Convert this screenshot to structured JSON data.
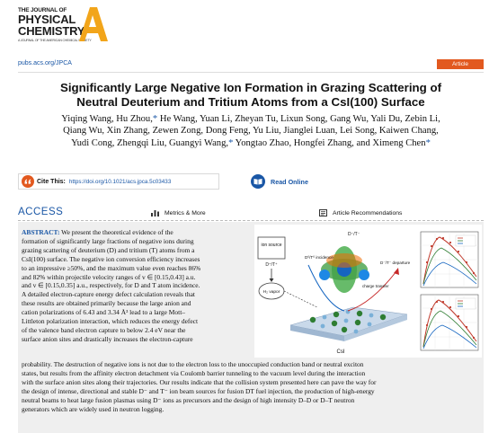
{
  "journal": {
    "line1": "THE JOURNAL OF",
    "line2": "PHYSICAL",
    "line3": "CHEMISTRY",
    "line4": "A JOURNAL OF THE AMERICAN CHEMICAL SOCIETY",
    "letter": "A"
  },
  "pubs_link": "pubs.acs.org/JPCA",
  "badge": "Article",
  "title_line1": "Significantly Large Negative Ion Formation in Grazing Scattering of",
  "title_line2": "Neutral Deuterium and Tritium Atoms from a CsI(100) Surface",
  "authors": {
    "line1": "Yiqing Wang, Hu Zhou,",
    "line1b": " He Wang, Yuan Li, Zheyan Tu, Lixun Song, Gang Wu, Yali Du, Zebin Li,",
    "line2": "Qiang Wu, Xin Zhang, Zewen Zong, Dong Feng, Yu Liu, Jianglei Luan, Lei Song, Kaiwen Chang,",
    "line3a": "Yudi Cong, Zhengqi Liu, Guangyi Wang,",
    "line3b": " Yongtao Zhao, Hongfei Zhang, and Ximeng Chen",
    "star": "*"
  },
  "cite": {
    "label": "Cite This:",
    "doi": "https://doi.org/10.1021/acs.jpca.5c03433"
  },
  "read_online": "Read Online",
  "access": {
    "label": "ACCESS",
    "metrics": "Metrics & More",
    "recommendations": "Article Recommendations"
  },
  "abstract": {
    "label": "ABSTRACT:",
    "lines": [
      " We present the theoretical evidence of the",
      "formation of significantly large fractions of negative ions during",
      "grazing scattering of deuterium (D) and tritium (T) atoms from a",
      "CsI(100) surface. The negative ion conversion efficiency increases",
      "to an impressive ≥50%, and the maximum value even reaches 86%",
      "and 82% within projectile velocity ranges of v ∈ [0.15,0.43] a.u.",
      "and v ∈ [0.15,0.35] a.u., respectively, for D and T atom incidence.",
      "A detailed electron-capture energy defect calculation reveals that",
      "these results are obtained primarily because the large anion and",
      "cation polarizations of 6.43 and 3.34 Å³ lead to a large Mott–",
      "Littleton polarization interaction, which reduces the energy defect",
      "of the valence band electron capture to below 2.4 eV near the",
      "surface anion sites and drastically increases the electron-capture"
    ],
    "full_lines": [
      "probability. The destruction of negative ions is not due to the electron loss to the unoccupied conduction band or neutral exciton",
      "states, but results from the affinity electron detachment via Coulomb barrier tunneling to the vacuum level during the interaction",
      "with the surface anion sites along their trajectories. Our results indicate that the collision system presented here can pave the way for",
      "the design of intense, directional and stable D⁻ and T⁻ ion beam sources for fusion DT fuel injection, the production of high-energy",
      "neutral beams to heat large fusion plasmas using D⁻ ions as precursors and the design of high intensity D–D or D–T neutron",
      "generators which are widely used in neutron logging."
    ]
  },
  "toc": {
    "ion_source": "ion source",
    "source_species": "D⁺/T⁺",
    "vapor_label": "H₂ vapor",
    "incidence": "D⁰/T⁰ incidence",
    "charge_transfer": "charge transfer",
    "departure": "D⁻/T⁻ departure",
    "crystal_label": "CsI",
    "ion_top": "D⁻/T⁻",
    "plot_colors": [
      "#c0392b",
      "#2e7d32",
      "#1565c0",
      "#888888"
    ]
  }
}
